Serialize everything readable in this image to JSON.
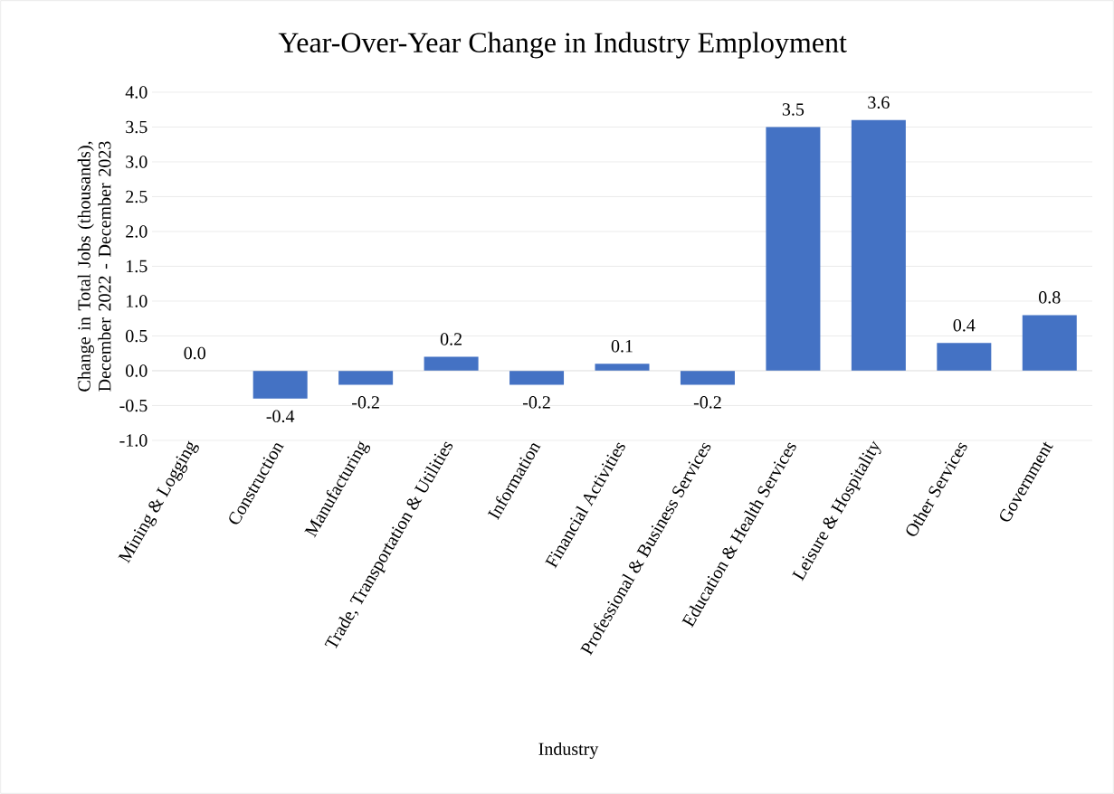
{
  "chart_data": {
    "type": "bar",
    "title": "Year-Over-Year Change in Industry Employment",
    "xlabel": "Industry",
    "ylabel": "Change in Total Jobs (thousands), December 2022 - December 2023",
    "categories": [
      "Mining & Logging",
      "Construction",
      "Manufacturing",
      "Trade, Transportation & Utilities",
      "Information",
      "Financial Activities",
      "Professional & Business Services",
      "Education & Health Services",
      "Leisure & Hospitality",
      "Other Services",
      "Government"
    ],
    "values": [
      0.0,
      -0.4,
      -0.2,
      0.2,
      -0.2,
      0.1,
      -0.2,
      3.5,
      3.6,
      0.4,
      0.8
    ],
    "value_labels": [
      "0.0",
      "-0.4",
      "-0.2",
      "0.2",
      "-0.2",
      "0.1",
      "-0.2",
      "3.5",
      "3.6",
      "0.4",
      "0.8"
    ],
    "color": "#4472c4",
    "ylim": [
      -1,
      4
    ],
    "yticks": [
      {
        "value": -1,
        "label": "-1.0"
      },
      {
        "value": -0.5,
        "label": "-0.5"
      },
      {
        "value": 0,
        "label": "0.0"
      },
      {
        "value": 0.5,
        "label": "0.5"
      },
      {
        "value": 1,
        "label": "1.0"
      },
      {
        "value": 1.5,
        "label": "1.5"
      },
      {
        "value": 2,
        "label": "2.0"
      },
      {
        "value": 2.5,
        "label": "2.5"
      },
      {
        "value": 3,
        "label": "3.0"
      },
      {
        "value": 3.5,
        "label": "3.5"
      },
      {
        "value": 4,
        "label": "4.0"
      }
    ],
    "grid": "y"
  }
}
